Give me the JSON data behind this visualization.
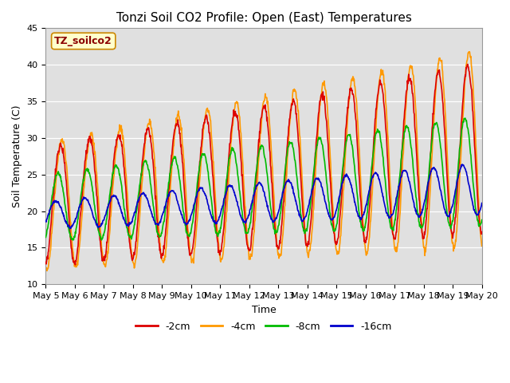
{
  "title": "Tonzi Soil CO2 Profile: Open (East) Temperatures",
  "xlabel": "Time",
  "ylabel": "Soil Temperature (C)",
  "ylim": [
    10,
    45
  ],
  "xlim_days": [
    0,
    15
  ],
  "x_tick_labels": [
    "May 5",
    "May 6",
    "May 7",
    "May 8",
    "May 9",
    "May 10",
    "May 11",
    "May 12",
    "May 13",
    "May 14",
    "May 15",
    "May 16",
    "May 17",
    "May 18",
    "May 19",
    "May 20"
  ],
  "legend_label": "TZ_soilco2",
  "series_labels": [
    "-2cm",
    "-4cm",
    "-8cm",
    "-16cm"
  ],
  "series_colors": [
    "#dd0000",
    "#ff9900",
    "#00bb00",
    "#0000cc"
  ],
  "background_color": "#ffffff",
  "plot_bg_color": "#e0e0e0",
  "title_fontsize": 11,
  "axis_fontsize": 9,
  "tick_fontsize": 8,
  "legend_fontsize": 9,
  "linewidth": 1.2,
  "n_points": 1080,
  "phase_2cm": 0.0,
  "phase_4cm": 0.25,
  "phase_8cm": 0.5,
  "phase_16cm": 0.9
}
